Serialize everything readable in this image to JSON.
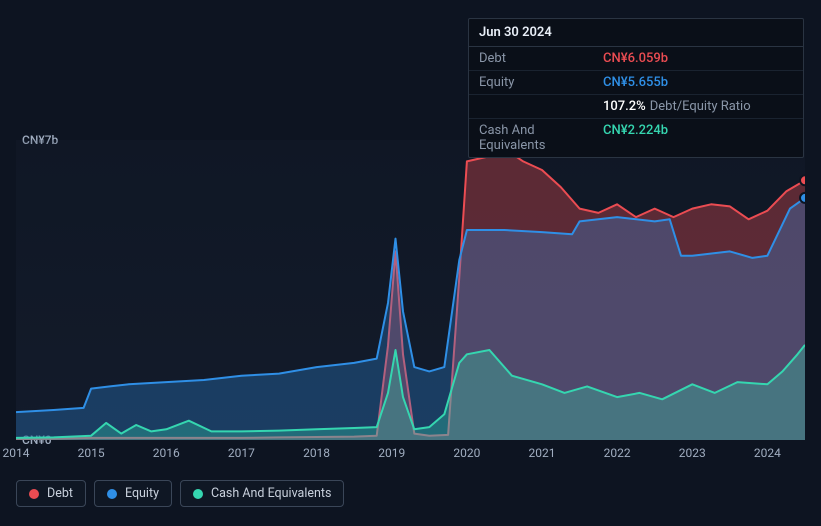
{
  "tooltip": {
    "date": "Jun 30 2024",
    "rows": [
      {
        "label": "Debt",
        "value": "CN¥6.059b",
        "color": "#eb4c52"
      },
      {
        "label": "Equity",
        "value": "CN¥5.655b",
        "color": "#2f8fe6"
      },
      {
        "label": "",
        "value": "107.2%",
        "suffix": "Debt/Equity Ratio",
        "color": "#ffffff"
      },
      {
        "label": "Cash And Equivalents",
        "value": "CN¥2.224b",
        "color": "#35d6b0"
      }
    ]
  },
  "chart": {
    "type": "area",
    "background": "#0d1421",
    "y_axis": {
      "min": 0,
      "max": 7,
      "labels": [
        {
          "v": 7,
          "text": "CN¥7b"
        },
        {
          "v": 0,
          "text": "CN¥0"
        }
      ],
      "color": "#a0adc0",
      "fontsize": 12
    },
    "x_axis": {
      "min": 2014,
      "max": 2024.5,
      "ticks": [
        2014,
        2015,
        2016,
        2017,
        2018,
        2019,
        2020,
        2021,
        2022,
        2023,
        2024
      ],
      "color": "#a0adc0",
      "fontsize": 12
    },
    "series": [
      {
        "name": "Debt",
        "color": "#eb4c52",
        "fill_opacity": 0.35,
        "line_width": 2,
        "points": [
          [
            2014,
            0.02
          ],
          [
            2014.5,
            0.03
          ],
          [
            2015,
            0.05
          ],
          [
            2015.5,
            0.05
          ],
          [
            2016,
            0.05
          ],
          [
            2016.5,
            0.05
          ],
          [
            2017,
            0.05
          ],
          [
            2017.5,
            0.06
          ],
          [
            2018,
            0.07
          ],
          [
            2018.5,
            0.08
          ],
          [
            2018.8,
            0.1
          ],
          [
            2018.95,
            2.2
          ],
          [
            2019.05,
            4.4
          ],
          [
            2019.15,
            2.0
          ],
          [
            2019.3,
            0.15
          ],
          [
            2019.5,
            0.1
          ],
          [
            2019.75,
            0.12
          ],
          [
            2019.9,
            3.8
          ],
          [
            2020.0,
            6.5
          ],
          [
            2020.25,
            6.6
          ],
          [
            2020.5,
            6.8
          ],
          [
            2020.75,
            6.5
          ],
          [
            2021,
            6.3
          ],
          [
            2021.25,
            5.9
          ],
          [
            2021.5,
            5.4
          ],
          [
            2021.75,
            5.3
          ],
          [
            2022,
            5.5
          ],
          [
            2022.25,
            5.2
          ],
          [
            2022.5,
            5.4
          ],
          [
            2022.75,
            5.2
          ],
          [
            2023,
            5.4
          ],
          [
            2023.25,
            5.5
          ],
          [
            2023.5,
            5.45
          ],
          [
            2023.75,
            5.15
          ],
          [
            2024,
            5.35
          ],
          [
            2024.25,
            5.8
          ],
          [
            2024.5,
            6.06
          ]
        ]
      },
      {
        "name": "Equity",
        "color": "#2f8fe6",
        "fill_opacity": 0.3,
        "line_width": 2,
        "points": [
          [
            2014,
            0.65
          ],
          [
            2014.5,
            0.7
          ],
          [
            2014.9,
            0.75
          ],
          [
            2015.0,
            1.2
          ],
          [
            2015.25,
            1.25
          ],
          [
            2015.5,
            1.3
          ],
          [
            2016,
            1.35
          ],
          [
            2016.5,
            1.4
          ],
          [
            2017,
            1.5
          ],
          [
            2017.5,
            1.55
          ],
          [
            2018,
            1.7
          ],
          [
            2018.5,
            1.8
          ],
          [
            2018.8,
            1.9
          ],
          [
            2018.95,
            3.2
          ],
          [
            2019.05,
            4.7
          ],
          [
            2019.15,
            3.0
          ],
          [
            2019.3,
            1.7
          ],
          [
            2019.5,
            1.6
          ],
          [
            2019.7,
            1.7
          ],
          [
            2019.9,
            4.2
          ],
          [
            2020.0,
            4.9
          ],
          [
            2020.5,
            4.9
          ],
          [
            2021,
            4.85
          ],
          [
            2021.4,
            4.8
          ],
          [
            2021.5,
            5.1
          ],
          [
            2022,
            5.2
          ],
          [
            2022.5,
            5.1
          ],
          [
            2022.7,
            5.15
          ],
          [
            2022.85,
            4.3
          ],
          [
            2023,
            4.3
          ],
          [
            2023.5,
            4.4
          ],
          [
            2023.8,
            4.25
          ],
          [
            2024,
            4.3
          ],
          [
            2024.3,
            5.4
          ],
          [
            2024.5,
            5.65
          ]
        ]
      },
      {
        "name": "Cash And Equivalents",
        "color": "#35d6b0",
        "fill_opacity": 0.3,
        "line_width": 2,
        "points": [
          [
            2014,
            0.05
          ],
          [
            2014.5,
            0.06
          ],
          [
            2015,
            0.1
          ],
          [
            2015.2,
            0.4
          ],
          [
            2015.4,
            0.15
          ],
          [
            2015.6,
            0.35
          ],
          [
            2015.8,
            0.2
          ],
          [
            2016,
            0.25
          ],
          [
            2016.3,
            0.45
          ],
          [
            2016.6,
            0.2
          ],
          [
            2017,
            0.2
          ],
          [
            2017.5,
            0.22
          ],
          [
            2018,
            0.25
          ],
          [
            2018.5,
            0.28
          ],
          [
            2018.8,
            0.3
          ],
          [
            2018.95,
            1.1
          ],
          [
            2019.05,
            2.1
          ],
          [
            2019.15,
            1.0
          ],
          [
            2019.3,
            0.25
          ],
          [
            2019.5,
            0.3
          ],
          [
            2019.7,
            0.6
          ],
          [
            2019.9,
            1.8
          ],
          [
            2020,
            2.0
          ],
          [
            2020.3,
            2.1
          ],
          [
            2020.6,
            1.5
          ],
          [
            2021,
            1.3
          ],
          [
            2021.3,
            1.1
          ],
          [
            2021.6,
            1.25
          ],
          [
            2022,
            1.0
          ],
          [
            2022.3,
            1.1
          ],
          [
            2022.6,
            0.95
          ],
          [
            2023,
            1.3
          ],
          [
            2023.3,
            1.1
          ],
          [
            2023.6,
            1.35
          ],
          [
            2024,
            1.3
          ],
          [
            2024.2,
            1.6
          ],
          [
            2024.4,
            2.0
          ],
          [
            2024.5,
            2.22
          ]
        ]
      }
    ],
    "legend": {
      "items": [
        {
          "label": "Debt",
          "color": "#eb4c52"
        },
        {
          "label": "Equity",
          "color": "#2f8fe6"
        },
        {
          "label": "Cash And Equivalents",
          "color": "#35d6b0"
        }
      ],
      "fontsize": 12.5,
      "border_color": "#3a4658"
    },
    "endpoint_markers": {
      "radius": 5
    }
  }
}
